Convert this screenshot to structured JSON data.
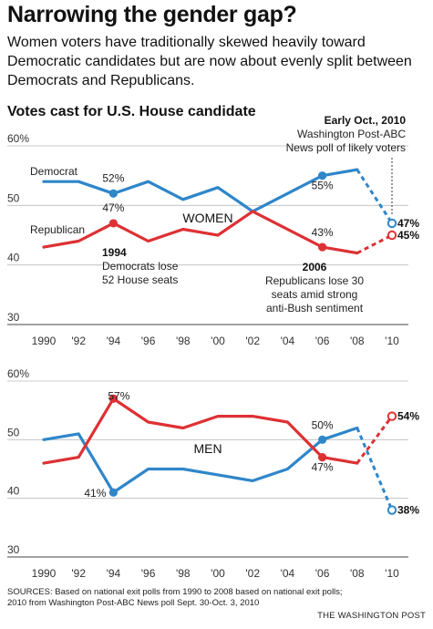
{
  "header": {
    "title": "Narrowing the gender gap?",
    "subtitle": "Women voters have traditionally skewed heavily toward Democratic candidates but are now about evenly split between Democrats and Republicans.",
    "section_title": "Votes cast for U.S. House candidate"
  },
  "colors": {
    "democrat": "#2f86c9",
    "republican": "#de3134",
    "grid": "#bbbbbb"
  },
  "poll_note": {
    "line1": "Early Oct., 2010",
    "line2": "Washington Post-ABC",
    "line3": "News poll of likely voters"
  },
  "annotations": {
    "a1994_title": "1994",
    "a1994_line1": "Democrats lose",
    "a1994_line2": "52 House seats",
    "a2006_title": "2006",
    "a2006_line1": "Republicans lose 30",
    "a2006_line2": "seats amid strong",
    "a2006_line3": "anti-Bush sentiment"
  },
  "chart_data": [
    {
      "type": "line",
      "panel_label": "WOMEN",
      "x": [
        "1990",
        "'92",
        "'94",
        "'96",
        "'98",
        "'00",
        "'02",
        "'04",
        "'06",
        "'08",
        "'10"
      ],
      "ylim": [
        30,
        60
      ],
      "y_ticks": [
        "60%",
        "50",
        "40",
        "30"
      ],
      "series": [
        {
          "name": "Democrat",
          "values": [
            54,
            54,
            52,
            54,
            51,
            53,
            49,
            null,
            55,
            56,
            47
          ],
          "point_labels": [
            {
              "x_index": 2,
              "text": "52%"
            },
            {
              "x_index": 8,
              "text": "55%"
            },
            {
              "x_index": 10,
              "text": "47%"
            }
          ]
        },
        {
          "name": "Republican",
          "values": [
            43,
            44,
            47,
            44,
            46,
            45,
            49,
            null,
            43,
            42,
            45
          ],
          "point_labels": [
            {
              "x_index": 2,
              "text": "47%"
            },
            {
              "x_index": 8,
              "text": "43%"
            },
            {
              "x_index": 10,
              "text": "45%"
            }
          ]
        }
      ]
    },
    {
      "type": "line",
      "panel_label": "MEN",
      "x": [
        "1990",
        "'92",
        "'94",
        "'96",
        "'98",
        "'00",
        "'02",
        "'04",
        "'06",
        "'08",
        "'10"
      ],
      "ylim": [
        30,
        60
      ],
      "y_ticks": [
        "60%",
        "50",
        "40",
        "30"
      ],
      "series": [
        {
          "name": "Democrat",
          "values": [
            50,
            51,
            41,
            45,
            45,
            44,
            43,
            45,
            50,
            52,
            38
          ],
          "point_labels": [
            {
              "x_index": 2,
              "text": "41%"
            },
            {
              "x_index": 8,
              "text": "50%"
            },
            {
              "x_index": 10,
              "text": "38%"
            }
          ]
        },
        {
          "name": "Republican",
          "values": [
            46,
            47,
            57,
            53,
            52,
            54,
            54,
            53,
            47,
            46,
            54
          ],
          "point_labels": [
            {
              "x_index": 2,
              "text": "57%"
            },
            {
              "x_index": 8,
              "text": "47%"
            },
            {
              "x_index": 10,
              "text": "54%"
            }
          ]
        }
      ]
    }
  ],
  "footer": {
    "sources": "SOURCES: Based on national exit polls from 1990 to 2008 based on national exit polls; 2010 from Washington Post-ABC News poll Sept. 30-Oct. 3, 2010",
    "brand": "THE WASHINGTON POST"
  }
}
